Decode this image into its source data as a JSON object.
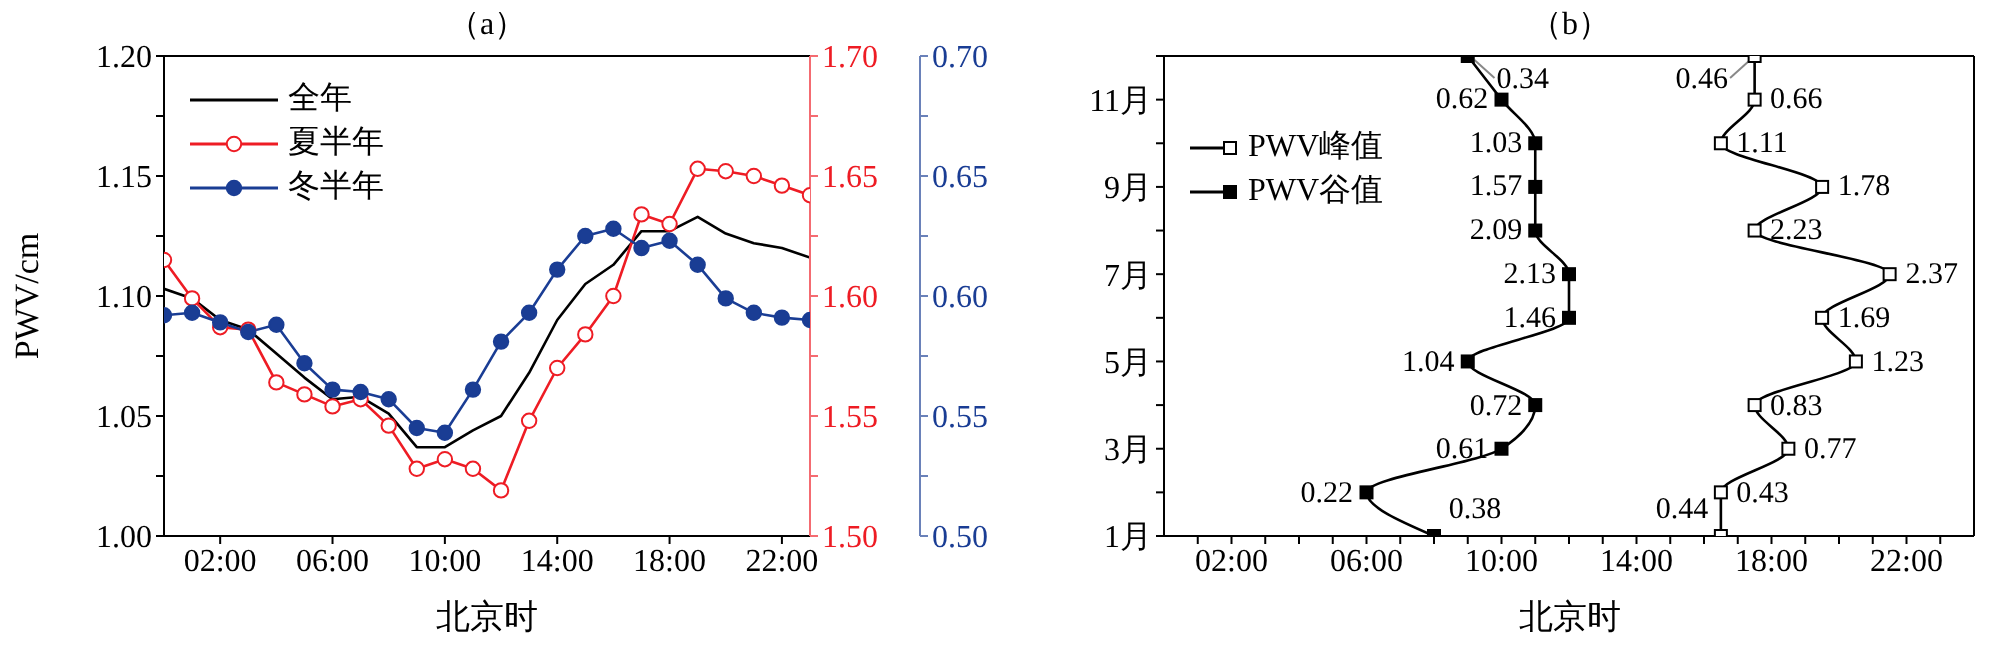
{
  "chart_data": [
    {
      "type": "line",
      "title": "（a）",
      "xlabel": "北京时",
      "ylabel": "PWV/cm",
      "x": [
        0,
        1,
        2,
        3,
        4,
        5,
        6,
        7,
        8,
        9,
        10,
        11,
        12,
        13,
        14,
        15,
        16,
        17,
        18,
        19,
        20,
        21,
        22,
        23
      ],
      "xlim": [
        0,
        23
      ],
      "xticks": [
        {
          "value": 2,
          "label": "02:00"
        },
        {
          "value": 6,
          "label": "06:00"
        },
        {
          "value": 10,
          "label": "10:00"
        },
        {
          "value": 14,
          "label": "14:00"
        },
        {
          "value": 18,
          "label": "18:00"
        },
        {
          "value": 22,
          "label": "22:00"
        }
      ],
      "ylim": [
        1.0,
        1.2
      ],
      "yticks": [
        {
          "value": 1.0,
          "label": "1.00"
        },
        {
          "value": 1.025,
          "label": null
        },
        {
          "value": 1.05,
          "label": "1.05"
        },
        {
          "value": 1.075,
          "label": null
        },
        {
          "value": 1.1,
          "label": "1.10"
        },
        {
          "value": 1.125,
          "label": null
        },
        {
          "value": 1.15,
          "label": "1.15"
        },
        {
          "value": 1.175,
          "label": null
        },
        {
          "value": 1.2,
          "label": "1.20"
        }
      ],
      "y2lim": [
        1.5,
        1.7
      ],
      "y2ticks": [
        {
          "value": 1.5,
          "label": "1.50"
        },
        {
          "value": 1.525,
          "label": null
        },
        {
          "value": 1.55,
          "label": "1.55"
        },
        {
          "value": 1.575,
          "label": null
        },
        {
          "value": 1.6,
          "label": "1.60"
        },
        {
          "value": 1.625,
          "label": null
        },
        {
          "value": 1.65,
          "label": "1.65"
        },
        {
          "value": 1.675,
          "label": null
        },
        {
          "value": 1.7,
          "label": "1.70"
        }
      ],
      "y3lim": [
        0.5,
        0.7
      ],
      "y3ticks": [
        {
          "value": 0.5,
          "label": "0.50"
        },
        {
          "value": 0.525,
          "label": null
        },
        {
          "value": 0.55,
          "label": "0.55"
        },
        {
          "value": 0.575,
          "label": null
        },
        {
          "value": 0.6,
          "label": "0.60"
        },
        {
          "value": 0.625,
          "label": null
        },
        {
          "value": 0.65,
          "label": "0.65"
        },
        {
          "value": 0.675,
          "label": null
        },
        {
          "value": 0.7,
          "label": "0.70"
        }
      ],
      "legend": "top left",
      "series": [
        {
          "name": "全年",
          "color": "#000000",
          "marker": "none",
          "values": [
            1.103,
            1.099,
            1.09,
            1.086,
            1.076,
            1.066,
            1.057,
            1.058,
            1.051,
            1.037,
            1.037,
            1.044,
            1.05,
            1.068,
            1.09,
            1.105,
            1.113,
            1.127,
            1.127,
            1.133,
            1.126,
            1.122,
            1.12,
            1.116
          ]
        },
        {
          "name": "夏半年",
          "color": "#ee1c24",
          "marker": "circle",
          "axis": "y2",
          "values": [
            1.615,
            1.599,
            1.587,
            1.586,
            1.564,
            1.559,
            1.554,
            1.557,
            1.546,
            1.528,
            1.532,
            1.528,
            1.519,
            1.548,
            1.57,
            1.584,
            1.6,
            1.634,
            1.63,
            1.653,
            1.652,
            1.65,
            1.646,
            1.642
          ]
        },
        {
          "name": "冬半年",
          "color": "#1a3d94",
          "marker": "circle",
          "axis": "y3",
          "values": [
            0.592,
            0.593,
            0.589,
            0.585,
            0.588,
            0.572,
            0.561,
            0.56,
            0.557,
            0.545,
            0.543,
            0.561,
            0.581,
            0.593,
            0.611,
            0.625,
            0.628,
            0.62,
            0.623,
            0.613,
            0.599,
            0.593,
            0.591,
            0.59
          ]
        }
      ]
    },
    {
      "type": "line",
      "title": "（b）",
      "xlabel": "北京时",
      "xlim": [
        0,
        24
      ],
      "xticks": [
        {
          "value": 1,
          "label": null
        },
        {
          "value": 2,
          "label": "02:00"
        },
        {
          "value": 3,
          "label": null
        },
        {
          "value": 4,
          "label": null
        },
        {
          "value": 5,
          "label": null
        },
        {
          "value": 6,
          "label": "06:00"
        },
        {
          "value": 7,
          "label": null
        },
        {
          "value": 8,
          "label": null
        },
        {
          "value": 9,
          "label": null
        },
        {
          "value": 10,
          "label": "10:00"
        },
        {
          "value": 11,
          "label": null
        },
        {
          "value": 12,
          "label": null
        },
        {
          "value": 13,
          "label": null
        },
        {
          "value": 14,
          "label": "14:00"
        },
        {
          "value": 15,
          "label": null
        },
        {
          "value": 16,
          "label": null
        },
        {
          "value": 17,
          "label": null
        },
        {
          "value": 18,
          "label": "18:00"
        },
        {
          "value": 19,
          "label": null
        },
        {
          "value": 20,
          "label": null
        },
        {
          "value": 21,
          "label": null
        },
        {
          "value": 22,
          "label": "22:00"
        },
        {
          "value": 23,
          "label": null
        }
      ],
      "ylim": [
        1,
        12
      ],
      "yticks": [
        {
          "value": 1,
          "label": "1月"
        },
        {
          "value": 2,
          "label": null
        },
        {
          "value": 3,
          "label": "3月"
        },
        {
          "value": 4,
          "label": null
        },
        {
          "value": 5,
          "label": "5月"
        },
        {
          "value": 6,
          "label": null
        },
        {
          "value": 7,
          "label": "7月"
        },
        {
          "value": 8,
          "label": null
        },
        {
          "value": 9,
          "label": "9月"
        },
        {
          "value": 10,
          "label": null
        },
        {
          "value": 11,
          "label": "11月"
        },
        {
          "value": 12,
          "label": null
        }
      ],
      "legend": "top left",
      "marker": "square",
      "series": [
        {
          "name": "PWV峰值",
          "color": "#000000",
          "x": [
            16.5,
            16.5,
            18.5,
            17.5,
            20.5,
            19.5,
            21.5,
            17.5,
            19.5,
            16.5,
            17.5,
            17.5
          ],
          "values": [
            1,
            2,
            3,
            4,
            5,
            6,
            7,
            8,
            9,
            10,
            11,
            12
          ]
        },
        {
          "name": "PWV谷值",
          "color": "#000000",
          "x": [
            8,
            6,
            10,
            11,
            9,
            12,
            12,
            11,
            11,
            11,
            10,
            9
          ],
          "values": [
            1,
            2,
            3,
            4,
            5,
            6,
            7,
            8,
            9,
            10,
            11,
            12
          ]
        }
      ],
      "annotations": [
        {
          "text": "0.44",
          "x": 16.5,
          "y": 1
        },
        {
          "text": "0.43",
          "x": 16.5,
          "y": 2
        },
        {
          "text": "0.77",
          "x": 18.5,
          "y": 3
        },
        {
          "text": "0.83",
          "x": 17.5,
          "y": 4
        },
        {
          "text": "1.23",
          "x": 20.5,
          "y": 5
        },
        {
          "text": "1.69",
          "x": 19.5,
          "y": 6
        },
        {
          "text": "2.37",
          "x": 21.5,
          "y": 7
        },
        {
          "text": "2.23",
          "x": 17.5,
          "y": 8
        },
        {
          "text": "1.78",
          "x": 19.5,
          "y": 9
        },
        {
          "text": "1.11",
          "x": 16.5,
          "y": 10
        },
        {
          "text": "0.66",
          "x": 17.5,
          "y": 11
        },
        {
          "text": "0.46",
          "x": 17.5,
          "y": 12
        },
        {
          "text": "0.38",
          "x": 8,
          "y": 1
        },
        {
          "text": "0.22",
          "x": 6,
          "y": 2
        },
        {
          "text": "0.61",
          "x": 10,
          "y": 3
        },
        {
          "text": "0.72",
          "x": 11,
          "y": 4
        },
        {
          "text": "1.04",
          "x": 9,
          "y": 5
        },
        {
          "text": "1.46",
          "x": 12,
          "y": 6
        },
        {
          "text": "2.13",
          "x": 12,
          "y": 7
        },
        {
          "text": "2.09",
          "x": 11,
          "y": 8
        },
        {
          "text": "1.57",
          "x": 11,
          "y": 9
        },
        {
          "text": "1.03",
          "x": 11,
          "y": 10
        },
        {
          "text": "0.62",
          "x": 10,
          "y": 11
        },
        {
          "text": "0.34",
          "x": 9,
          "y": 12
        }
      ]
    }
  ]
}
